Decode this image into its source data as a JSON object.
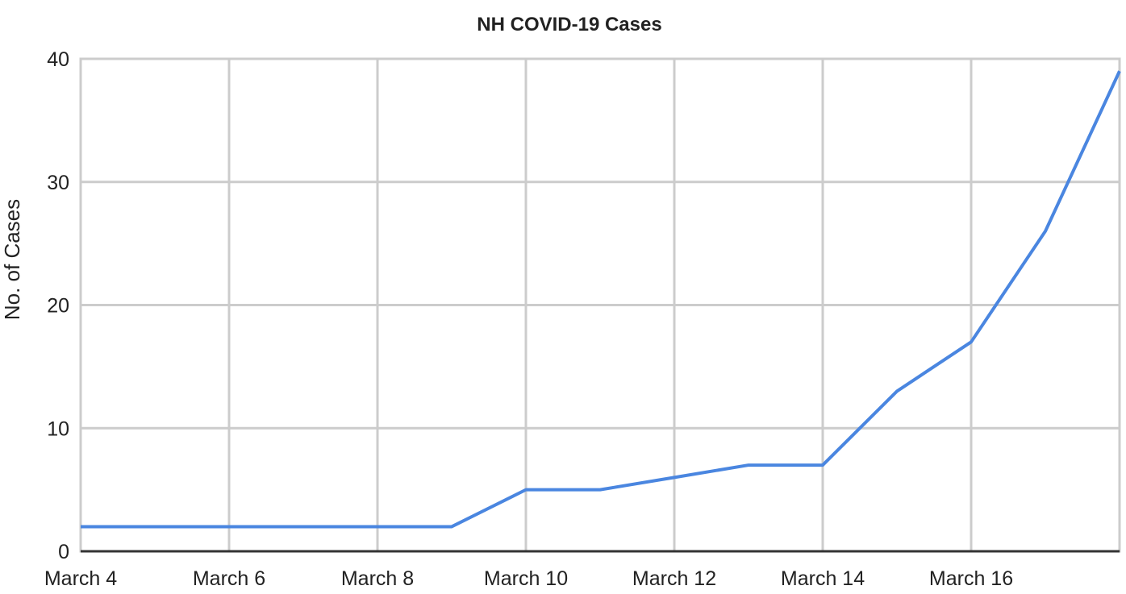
{
  "chart_data": {
    "type": "line",
    "title": "NH COVID-19 Cases",
    "y_label": "No. of Cases",
    "categories": [
      "March 4",
      null,
      "March 6",
      null,
      "March 8",
      null,
      "March 10",
      null,
      "March 12",
      null,
      "March 14",
      null,
      "March 16",
      null,
      null
    ],
    "series": [
      {
        "name": "Cases",
        "color": "#4a86e0",
        "values": [
          2,
          2,
          2,
          2,
          2,
          2,
          5,
          5,
          6,
          7,
          7,
          13,
          17,
          26,
          39
        ]
      }
    ],
    "ylim": [
      0,
      40
    ],
    "yticks": [
      0,
      10,
      20,
      30,
      40
    ],
    "grid": true
  }
}
